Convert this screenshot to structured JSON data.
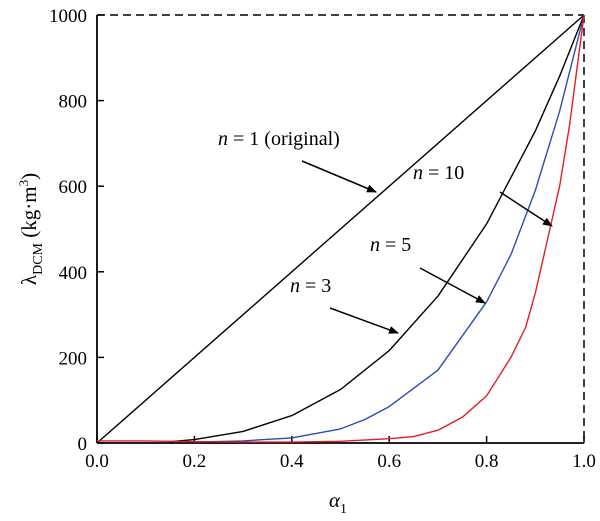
{
  "chart_data": {
    "type": "line",
    "xlabel_main": "α",
    "xlabel_sub": "1",
    "ylabel_main": "λ",
    "ylabel_sub": "DCM",
    "ylabel_unit": " (kg·m",
    "ylabel_sup": "3",
    "ylabel_close": ")",
    "xlim": [
      0,
      1
    ],
    "ylim": [
      0,
      1000
    ],
    "xticks": [
      "0.0",
      "0.2",
      "0.4",
      "0.6",
      "0.8",
      "1.0"
    ],
    "yticks": [
      "0",
      "200",
      "400",
      "600",
      "800",
      "1000"
    ],
    "grid": false,
    "series": [
      {
        "label": "n = 1 (original)",
        "color": "#000000",
        "x": [
          0,
          1
        ],
        "y": [
          0,
          1000
        ]
      },
      {
        "label": "n = 3",
        "color": "#000000",
        "x": [
          0.15,
          0.2,
          0.3,
          0.4,
          0.5,
          0.6,
          0.7,
          0.8,
          0.9,
          0.95,
          1.0
        ],
        "y": [
          3,
          8,
          27,
          64,
          125,
          216,
          343,
          512,
          729,
          857,
          1000
        ]
      },
      {
        "label": "n = 5",
        "color": "#2a4db5",
        "x": [
          0.2,
          0.3,
          0.4,
          0.5,
          0.55,
          0.6,
          0.7,
          0.8,
          0.85,
          0.9,
          0.95,
          1.0
        ],
        "y": [
          2,
          5,
          12,
          33,
          55,
          85,
          170,
          330,
          440,
          590,
          775,
          1000
        ]
      },
      {
        "label": "n = 10",
        "color": "#e02020",
        "x": [
          0.0,
          0.1,
          0.2,
          0.3,
          0.4,
          0.5,
          0.6,
          0.65,
          0.7,
          0.75,
          0.8,
          0.85,
          0.88,
          0.9,
          0.93,
          0.95,
          0.97,
          1.0
        ],
        "y": [
          5,
          5,
          3,
          2,
          2,
          4,
          10,
          15,
          30,
          60,
          110,
          200,
          270,
          350,
          500,
          600,
          740,
          1000
        ]
      }
    ],
    "annotations": [
      {
        "var": "n",
        "rest": " = 1 (original)",
        "target": "series.0"
      },
      {
        "var": "n",
        "rest": " = 10",
        "target": "series.3"
      },
      {
        "var": "n",
        "rest": " = 5",
        "target": "series.2"
      },
      {
        "var": "n",
        "rest": " = 3",
        "target": "series.1"
      }
    ]
  }
}
